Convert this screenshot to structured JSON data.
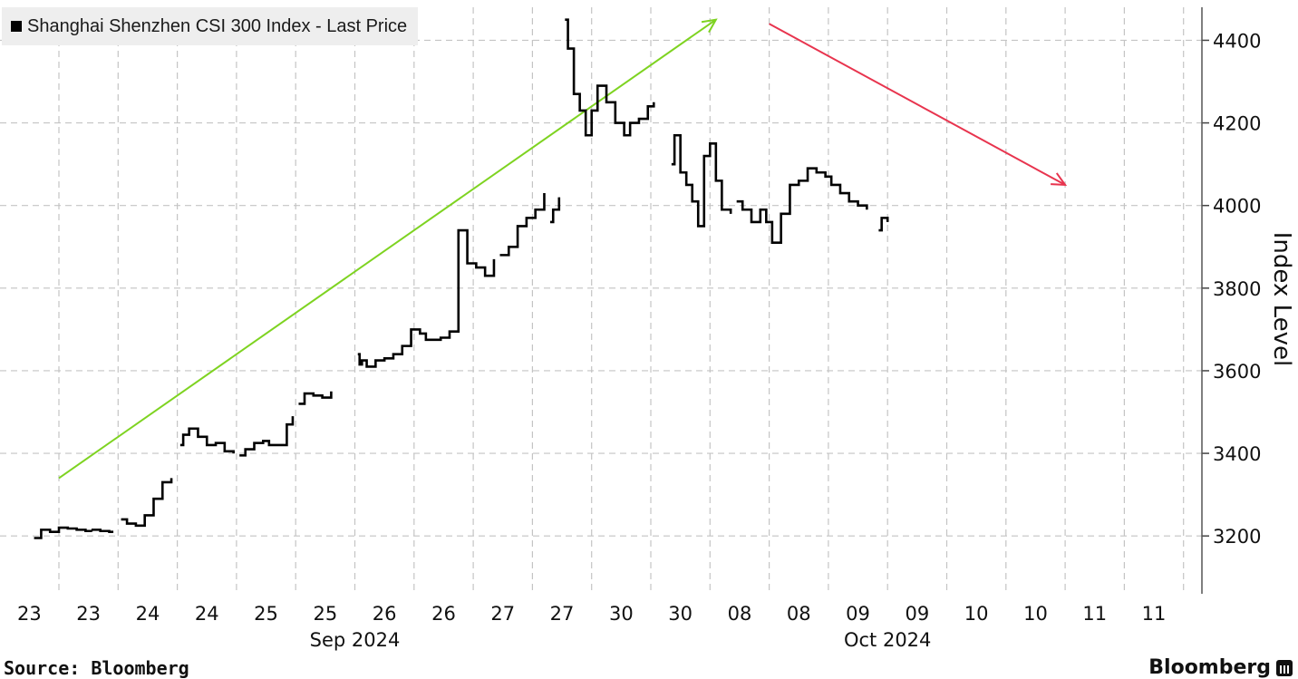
{
  "legend": {
    "label": "Shanghai Shenzhen CSI 300 Index - Last Price",
    "swatch_color": "#000000"
  },
  "footer": {
    "source": "Source: Bloomberg",
    "brand": "Bloomberg",
    "brand_icon": "bloomberg-chart-icon"
  },
  "chart_data": {
    "type": "line",
    "title": "",
    "ylabel": "Index Level",
    "ylim": [
      3060,
      4480
    ],
    "yticks": [
      3200,
      3400,
      3600,
      3800,
      4000,
      4200,
      4400
    ],
    "grid": true,
    "legend_position": "top-left",
    "x_tick_labels": [
      "23",
      "23",
      "24",
      "24",
      "25",
      "25",
      "26",
      "26",
      "27",
      "27",
      "30",
      "30",
      "08",
      "08",
      "09",
      "09",
      "10",
      "10",
      "11",
      "11"
    ],
    "month_labels": [
      {
        "label": "Sep 2024",
        "at_tick": 5.5
      },
      {
        "label": "Oct 2024",
        "at_tick": 14.5
      }
    ],
    "series": [
      {
        "color": "#000000",
        "segments": [
          {
            "x": [
              -0.42,
              -0.3,
              -0.15,
              0.0,
              0.15,
              0.3,
              0.45,
              0.55
            ],
            "y": [
              3195,
              3215,
              3210,
              3220,
              3218,
              3215,
              3212,
              3210
            ]
          },
          {
            "x": [
              0.55,
              0.7,
              0.85,
              0.92
            ],
            "y": [
              3215,
              3212,
              3210,
              3210
            ]
          },
          {
            "x": [
              1.05,
              1.15,
              1.3,
              1.45,
              1.6,
              1.75,
              1.9
            ],
            "y": [
              3240,
              3230,
              3225,
              3250,
              3290,
              3330,
              3340
            ]
          },
          {
            "x": [
              2.05,
              2.1,
              2.2,
              2.35,
              2.5,
              2.65,
              2.8,
              2.95
            ],
            "y": [
              3420,
              3445,
              3460,
              3440,
              3420,
              3425,
              3405,
              3400
            ]
          },
          {
            "x": [
              3.05,
              3.15,
              3.3,
              3.45,
              3.55,
              3.7,
              3.85,
              3.95
            ],
            "y": [
              3395,
              3410,
              3425,
              3430,
              3420,
              3420,
              3470,
              3490
            ]
          },
          {
            "x": [
              4.05,
              4.15,
              4.3,
              4.45,
              4.6
            ],
            "y": [
              3520,
              3545,
              3540,
              3535,
              3550
            ]
          },
          {
            "x": [
              5.05,
              5.08,
              5.12,
              5.2,
              5.35,
              5.5,
              5.65,
              5.8,
              5.95,
              6.1,
              6.2,
              6.3,
              6.45,
              6.6,
              6.75,
              6.9,
              7.05,
              7.2,
              7.35
            ],
            "y": [
              3640,
              3615,
              3625,
              3610,
              3625,
              3630,
              3640,
              3660,
              3700,
              3690,
              3675,
              3675,
              3680,
              3695,
              3940,
              3860,
              3850,
              3830,
              3870
            ]
          },
          {
            "x": [
              7.45,
              7.6,
              7.75,
              7.9,
              8.05,
              8.2
            ],
            "y": [
              3880,
              3900,
              3950,
              3970,
              3990,
              4030
            ]
          },
          {
            "x": [
              8.3,
              8.35,
              8.45
            ],
            "y": [
              3960,
              3990,
              4020
            ]
          },
          {
            "x": [
              8.55,
              8.6,
              8.7,
              8.8,
              8.9,
              9.0,
              9.1,
              9.25,
              9.4,
              9.55,
              9.65,
              9.8,
              9.95,
              10.05
            ],
            "y": [
              4450,
              4380,
              4270,
              4230,
              4170,
              4230,
              4290,
              4250,
              4200,
              4170,
              4200,
              4210,
              4240,
              4250
            ]
          },
          {
            "x": [
              10.35,
              10.4,
              10.5,
              10.6,
              10.7,
              10.8,
              10.9,
              11.0,
              11.1,
              11.2,
              11.35
            ],
            "y": [
              4100,
              4170,
              4080,
              4050,
              4010,
              3950,
              4120,
              4150,
              4060,
              3990,
              3980
            ]
          },
          {
            "x": [
              11.45,
              11.55,
              11.7,
              11.85,
              11.95,
              12.05,
              12.2,
              12.35,
              12.5,
              12.65,
              12.8,
              12.95,
              13.05,
              13.2,
              13.35,
              13.5,
              13.65
            ],
            "y": [
              4010,
              3990,
              3960,
              3990,
              3960,
              3910,
              3980,
              4050,
              4060,
              4090,
              4080,
              4070,
              4050,
              4030,
              4010,
              4000,
              3990
            ]
          },
          {
            "x": [
              13.85,
              13.9,
              14.0
            ],
            "y": [
              3940,
              3970,
              3960
            ]
          }
        ]
      }
    ],
    "annotations": [
      {
        "type": "arrow",
        "color": "#7ed321",
        "from": {
          "x": 0.0,
          "y": 3340
        },
        "to": {
          "x": 11.1,
          "y": 4450
        }
      },
      {
        "type": "arrow",
        "color": "#e8344e",
        "from": {
          "x": 12.0,
          "y": 4440
        },
        "to": {
          "x": 17.0,
          "y": 4050
        }
      }
    ]
  }
}
